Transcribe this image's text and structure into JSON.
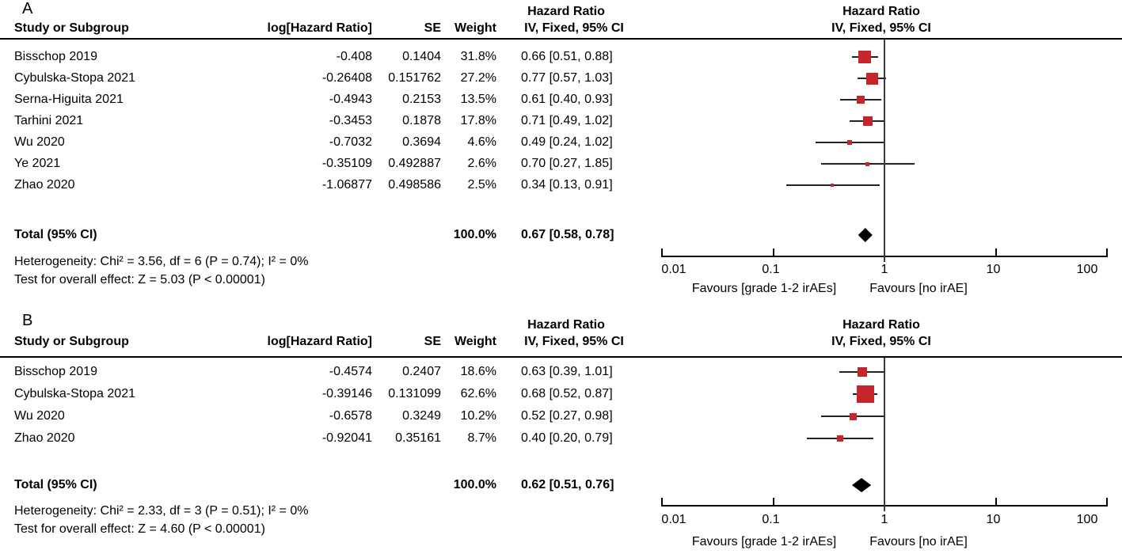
{
  "colors": {
    "marker_square": "#c4262b",
    "summary_diamond": "#000000",
    "ci_line": "#222222",
    "rule_line": "#000000",
    "text": "#000000"
  },
  "chart_data": [
    {
      "type": "forest",
      "panel_label": "A",
      "stats_header_title": "Hazard Ratio",
      "plot_header_title": "Hazard Ratio",
      "plot_header_subtitle": "IV, Fixed, 95% CI",
      "columns": {
        "study": "Study or Subgroup",
        "loghr": "log[Hazard Ratio]",
        "se": "SE",
        "weight": "Weight",
        "ci": "IV, Fixed, 95% CI"
      },
      "studies": [
        {
          "name": "Bisschop 2019",
          "loghr": "-0.408",
          "se": "0.1404",
          "weight_label": "31.8%",
          "weight": 31.8,
          "ci_label": "0.66 [0.51, 0.88]",
          "hr": 0.66,
          "ci_low": 0.51,
          "ci_high": 0.88
        },
        {
          "name": "Cybulska-Stopa 2021",
          "loghr": "-0.26408",
          "se": "0.151762",
          "weight_label": "27.2%",
          "weight": 27.2,
          "ci_label": "0.77 [0.57, 1.03]",
          "hr": 0.77,
          "ci_low": 0.57,
          "ci_high": 1.03
        },
        {
          "name": "Serna-Higuita 2021",
          "loghr": "-0.4943",
          "se": "0.2153",
          "weight_label": "13.5%",
          "weight": 13.5,
          "ci_label": "0.61 [0.40, 0.93]",
          "hr": 0.61,
          "ci_low": 0.4,
          "ci_high": 0.93
        },
        {
          "name": "Tarhini 2021",
          "loghr": "-0.3453",
          "se": "0.1878",
          "weight_label": "17.8%",
          "weight": 17.8,
          "ci_label": "0.71 [0.49, 1.02]",
          "hr": 0.71,
          "ci_low": 0.49,
          "ci_high": 1.02
        },
        {
          "name": "Wu 2020",
          "loghr": "-0.7032",
          "se": "0.3694",
          "weight_label": "4.6%",
          "weight": 4.6,
          "ci_label": "0.49 [0.24, 1.02]",
          "hr": 0.49,
          "ci_low": 0.24,
          "ci_high": 1.02
        },
        {
          "name": "Ye 2021",
          "loghr": "-0.35109",
          "se": "0.492887",
          "weight_label": "2.6%",
          "weight": 2.6,
          "ci_label": "0.70 [0.27, 1.85]",
          "hr": 0.7,
          "ci_low": 0.27,
          "ci_high": 1.85
        },
        {
          "name": "Zhao 2020",
          "loghr": "-1.06877",
          "se": "0.498586",
          "weight_label": "2.5%",
          "weight": 2.5,
          "ci_label": "0.34 [0.13, 0.91]",
          "hr": 0.34,
          "ci_low": 0.13,
          "ci_high": 0.91
        }
      ],
      "total": {
        "label": "Total (95% CI)",
        "weight_label": "100.0%",
        "ci_label": "0.67 [0.58, 0.78]",
        "hr": 0.67,
        "ci_low": 0.58,
        "ci_high": 0.78
      },
      "heterogeneity": "Heterogeneity: Chi² = 3.56, df = 6 (P = 0.74); I² = 0%",
      "overall_effect": "Test for overall effect: Z = 5.03 (P < 0.00001)",
      "x_axis": {
        "scale": "log",
        "min": 0.01,
        "max": 100,
        "ticks": [
          0.01,
          0.1,
          1,
          10,
          100
        ],
        "tick_labels": [
          "0.01",
          "0.1",
          "1",
          "10",
          "100"
        ]
      },
      "favours_left": "Favours [grade 1-2 irAEs]",
      "favours_right": "Favours [no irAE]"
    },
    {
      "type": "forest",
      "panel_label": "B",
      "stats_header_title": "Hazard Ratio",
      "plot_header_title": "Hazard Ratio",
      "plot_header_subtitle": "IV, Fixed, 95% CI",
      "columns": {
        "study": "Study or Subgroup",
        "loghr": "log[Hazard Ratio]",
        "se": "SE",
        "weight": "Weight",
        "ci": "IV, Fixed, 95% CI"
      },
      "studies": [
        {
          "name": "Bisschop 2019",
          "loghr": "-0.4574",
          "se": "0.2407",
          "weight_label": "18.6%",
          "weight": 18.6,
          "ci_label": "0.63 [0.39, 1.01]",
          "hr": 0.63,
          "ci_low": 0.39,
          "ci_high": 1.01
        },
        {
          "name": "Cybulska-Stopa 2021",
          "loghr": "-0.39146",
          "se": "0.131099",
          "weight_label": "62.6%",
          "weight": 62.6,
          "ci_label": "0.68 [0.52, 0.87]",
          "hr": 0.68,
          "ci_low": 0.52,
          "ci_high": 0.87
        },
        {
          "name": "Wu 2020",
          "loghr": "-0.6578",
          "se": "0.3249",
          "weight_label": "10.2%",
          "weight": 10.2,
          "ci_label": "0.52 [0.27, 0.98]",
          "hr": 0.52,
          "ci_low": 0.27,
          "ci_high": 0.98
        },
        {
          "name": "Zhao 2020",
          "loghr": "-0.92041",
          "se": "0.35161",
          "weight_label": "8.7%",
          "weight": 8.7,
          "ci_label": "0.40 [0.20, 0.79]",
          "hr": 0.4,
          "ci_low": 0.2,
          "ci_high": 0.79
        }
      ],
      "total": {
        "label": "Total (95% CI)",
        "weight_label": "100.0%",
        "ci_label": "0.62 [0.51, 0.76]",
        "hr": 0.62,
        "ci_low": 0.51,
        "ci_high": 0.76
      },
      "heterogeneity": "Heterogeneity: Chi² = 2.33, df = 3 (P = 0.51); I² = 0%",
      "overall_effect": "Test for overall effect: Z = 4.60 (P < 0.00001)",
      "x_axis": {
        "scale": "log",
        "min": 0.01,
        "max": 100,
        "ticks": [
          0.01,
          0.1,
          1,
          10,
          100
        ],
        "tick_labels": [
          "0.01",
          "0.1",
          "1",
          "10",
          "100"
        ]
      },
      "favours_left": "Favours [grade 1-2 irAEs]",
      "favours_right": "Favours [no irAE]"
    }
  ]
}
